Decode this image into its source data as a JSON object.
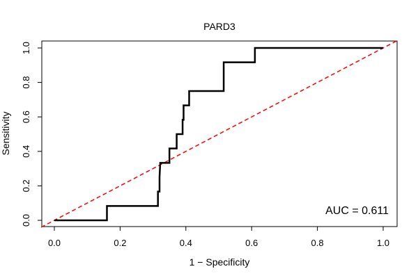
{
  "chart_data": {
    "type": "line",
    "title": "PARD3",
    "xlabel": "1 − Specificity",
    "ylabel": "Sensitivity",
    "xlim": [
      0,
      1
    ],
    "ylim": [
      0,
      1
    ],
    "x_ticks": [
      "0.0",
      "0.2",
      "0.4",
      "0.6",
      "0.8",
      "1.0"
    ],
    "y_ticks": [
      "0.0",
      "0.2",
      "0.4",
      "0.6",
      "0.8",
      "1.0"
    ],
    "grid": false,
    "annotation": "AUC = 0.611",
    "series": [
      {
        "name": "ROC curve",
        "color": "#000000",
        "points": [
          [
            0.0,
            0.0
          ],
          [
            0.16,
            0.0
          ],
          [
            0.16,
            0.083
          ],
          [
            0.315,
            0.083
          ],
          [
            0.315,
            0.167
          ],
          [
            0.32,
            0.167
          ],
          [
            0.32,
            0.25
          ],
          [
            0.322,
            0.333
          ],
          [
            0.35,
            0.333
          ],
          [
            0.35,
            0.417
          ],
          [
            0.372,
            0.417
          ],
          [
            0.372,
            0.5
          ],
          [
            0.39,
            0.5
          ],
          [
            0.39,
            0.583
          ],
          [
            0.393,
            0.583
          ],
          [
            0.393,
            0.667
          ],
          [
            0.41,
            0.667
          ],
          [
            0.41,
            0.75
          ],
          [
            0.515,
            0.75
          ],
          [
            0.515,
            0.917
          ],
          [
            0.61,
            0.917
          ],
          [
            0.61,
            1.0
          ],
          [
            1.0,
            1.0
          ]
        ]
      },
      {
        "name": "Chance line",
        "color": "#ff0000",
        "dashed": true,
        "points": [
          [
            -0.04,
            -0.04
          ],
          [
            1.04,
            1.04
          ]
        ]
      }
    ]
  }
}
